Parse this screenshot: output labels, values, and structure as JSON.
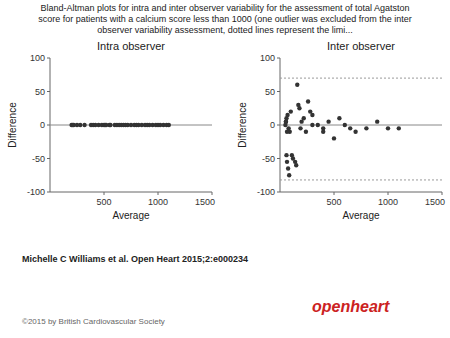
{
  "title": [
    "Bland-Altman plots for intra and inter observer variability for the assessment of total Agatston",
    "score for patients with a calcium score less than 1000 (one outlier was excluded from the inter",
    "observer variability assessment, dotted lines represent the limi..."
  ],
  "annotations": [
    {
      "text": "Michelle C Williams et al. Open Heart 2015;2:e000234"
    },
    {
      "text": "©2015 by British Cardiovascular Society"
    },
    {
      "text": "openheart",
      "color": "#cc2222"
    }
  ],
  "chart_data": [
    {
      "type": "scatter",
      "title": "Intra observer",
      "xlabel": "Average",
      "ylabel": "Difference",
      "xlim": [
        0,
        1500
      ],
      "ylim": [
        -100,
        100
      ],
      "xticks": [
        500,
        1000,
        1500
      ],
      "yticks": [
        -100,
        -50,
        0,
        50,
        100
      ],
      "grid": false,
      "color": "#333333",
      "reference_lines": [
        0
      ],
      "x": [
        200,
        210,
        220,
        250,
        280,
        320,
        380,
        400,
        420,
        450,
        480,
        500,
        510,
        520,
        550,
        560,
        600,
        620,
        640,
        660,
        680,
        700,
        720,
        750,
        780,
        800,
        820,
        850,
        880,
        900,
        920,
        950,
        980,
        1000,
        1020,
        1050,
        1080,
        1100
      ],
      "values": [
        0,
        0,
        0,
        0,
        0,
        0,
        0,
        0,
        0,
        0,
        0,
        0,
        0,
        0,
        0,
        0,
        0,
        0,
        0,
        0,
        0,
        0,
        0,
        0,
        0,
        0,
        0,
        0,
        0,
        0,
        0,
        0,
        0,
        0,
        0,
        0,
        0,
        0
      ]
    },
    {
      "type": "scatter",
      "title": "Inter observer",
      "xlabel": "Average",
      "ylabel": "Difference",
      "xlim": [
        0,
        1500
      ],
      "ylim": [
        -100,
        100
      ],
      "xticks": [
        500,
        1000,
        1500
      ],
      "yticks": [
        -100,
        -50,
        0,
        50,
        100
      ],
      "grid": false,
      "color": "#333333",
      "reference_lines": [
        0
      ],
      "limit_lines": [
        70,
        -82
      ],
      "x": [
        55,
        60,
        70,
        80,
        90,
        100,
        110,
        120,
        140,
        150,
        160,
        170,
        180,
        190,
        200,
        220,
        240,
        260,
        280,
        300,
        350,
        400,
        450,
        500,
        550,
        600,
        650,
        700,
        800,
        900,
        1000,
        1100,
        60,
        65,
        75,
        85,
        50,
        55,
        65,
        300,
        400
      ],
      "values": [
        5,
        10,
        15,
        -5,
        -10,
        20,
        -45,
        -50,
        -55,
        -60,
        60,
        30,
        25,
        -5,
        5,
        10,
        -10,
        35,
        20,
        15,
        0,
        -10,
        5,
        -20,
        10,
        0,
        -5,
        -10,
        -5,
        5,
        -5,
        -5,
        -45,
        -55,
        -65,
        -75,
        0,
        5,
        -10,
        0,
        -5
      ]
    }
  ]
}
